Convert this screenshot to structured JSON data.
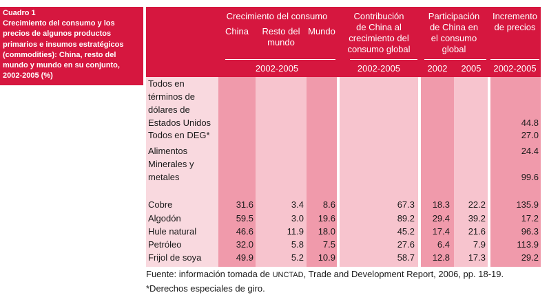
{
  "caption": {
    "number": "Cuadro 1",
    "title": "Crecimiento del consumo y los precios de algunos productos primarios e insumos estratégicos (commodities): China, resto del mundo y mundo en su conjunto, 2002-2005 (%)"
  },
  "header": {
    "group_consumo": "Crecimiento del consumo",
    "col_china": "China",
    "col_resto_l1": "Resto del",
    "col_resto_l2": "mundo",
    "col_mundo": "Mundo",
    "period_consumo": "2002-2005",
    "contrib_l1": "Contribución",
    "contrib_l2": "de China al",
    "contrib_l3": "crecimiento del",
    "contrib_l4": "consumo global",
    "period_contrib": "2002-2005",
    "part_l1": "Participación",
    "part_l2": "de China en",
    "part_l3": "el consumo",
    "part_l4": "global",
    "year_2002": "2002",
    "year_2005": "2005",
    "incr_l1": "Incremento",
    "incr_l2": "de precios",
    "period_incr": "2002-2005"
  },
  "rows": [
    {
      "label_lines": [
        "Todos en",
        "términos de",
        "dólares de",
        "Estados Unidos"
      ],
      "values": [
        "",
        "",
        "",
        "",
        "",
        "",
        "44.8"
      ]
    },
    {
      "label_lines": [
        "Todos en DEG*"
      ],
      "values": [
        "",
        "",
        "",
        "",
        "",
        "",
        "27.0"
      ]
    },
    {
      "label_lines": [
        "Alimentos"
      ],
      "values": [
        "",
        "",
        "",
        "",
        "",
        "",
        "24.4"
      ]
    },
    {
      "label_lines": [
        "Minerales y",
        "metales"
      ],
      "values": [
        "",
        "",
        "",
        "",
        "",
        "",
        "99.6"
      ]
    },
    {
      "label_lines": [
        "Cobre"
      ],
      "values": [
        "31.6",
        "3.4",
        "8.6",
        "67.3",
        "18.3",
        "22.2",
        "135.9"
      ]
    },
    {
      "label_lines": [
        "Algodón"
      ],
      "values": [
        "59.5",
        "3.0",
        "19.6",
        "89.2",
        "29.4",
        "39.2",
        "17.2"
      ]
    },
    {
      "label_lines": [
        "Hule natural"
      ],
      "values": [
        "46.6",
        "11.9",
        "18.0",
        "45.2",
        "17.4",
        "21.6",
        "96.3"
      ]
    },
    {
      "label_lines": [
        "Petróleo"
      ],
      "values": [
        "32.0",
        "5.8",
        "7.5",
        "27.6",
        "6.4",
        "7.9",
        "113.9"
      ]
    },
    {
      "label_lines": [
        "Frijol de soya"
      ],
      "values": [
        "49.9",
        "5.2",
        "10.9",
        "58.7",
        "12.8",
        "17.3",
        "29.2"
      ]
    }
  ],
  "footnotes": {
    "source_prefix": "Fuente: información tomada de ",
    "source_org": "UNCTAD",
    "source_suffix": ", Trade and Development Report, 2006, pp. 18-19.",
    "note": "*Derechos especiales de giro."
  }
}
